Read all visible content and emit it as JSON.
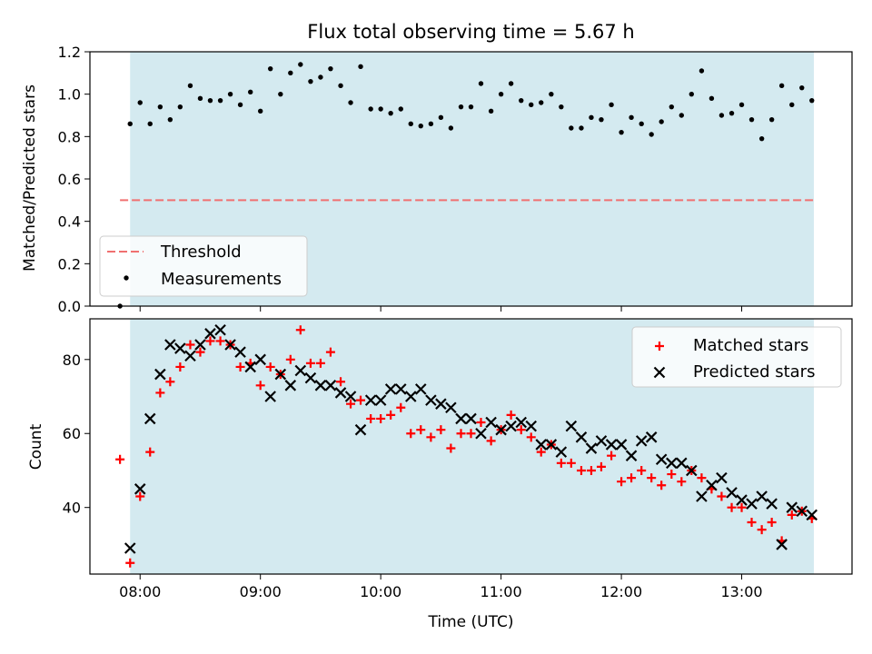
{
  "title": "Flux total observing time = 5.67 h",
  "chart_data": [
    {
      "type": "scatter",
      "name": "ratio-panel",
      "ylabel": "Matched/Predicted stars",
      "xlim": [
        7.583,
        13.917
      ],
      "ylim": [
        0.0,
        1.2
      ],
      "yticks": [
        0.0,
        0.2,
        0.4,
        0.6,
        0.8,
        1.0,
        1.2
      ],
      "ytick_labels": [
        "0.0",
        "0.2",
        "0.4",
        "0.6",
        "0.8",
        "1.0",
        "1.2"
      ],
      "shaded_span": [
        7.917,
        13.6
      ],
      "threshold": {
        "label": "Threshold",
        "value": 0.5,
        "x_range": [
          7.833,
          13.6
        ],
        "color": "#f07070"
      },
      "series": [
        {
          "name": "Measurements",
          "color": "#000000",
          "points": [
            [
              7.833,
              0.0
            ],
            [
              7.917,
              0.86
            ],
            [
              8.0,
              0.96
            ],
            [
              8.083,
              0.86
            ],
            [
              8.167,
              0.94
            ],
            [
              8.25,
              0.88
            ],
            [
              8.333,
              0.94
            ],
            [
              8.417,
              1.04
            ],
            [
              8.5,
              0.98
            ],
            [
              8.583,
              0.97
            ],
            [
              8.667,
              0.97
            ],
            [
              8.75,
              1.0
            ],
            [
              8.833,
              0.95
            ],
            [
              8.917,
              1.01
            ],
            [
              9.0,
              0.92
            ],
            [
              9.083,
              1.12
            ],
            [
              9.167,
              1.0
            ],
            [
              9.25,
              1.1
            ],
            [
              9.333,
              1.14
            ],
            [
              9.417,
              1.06
            ],
            [
              9.5,
              1.08
            ],
            [
              9.583,
              1.12
            ],
            [
              9.667,
              1.04
            ],
            [
              9.75,
              0.96
            ],
            [
              9.833,
              1.13
            ],
            [
              9.917,
              0.93
            ],
            [
              10.0,
              0.93
            ],
            [
              10.083,
              0.91
            ],
            [
              10.167,
              0.93
            ],
            [
              10.25,
              0.86
            ],
            [
              10.333,
              0.85
            ],
            [
              10.417,
              0.86
            ],
            [
              10.5,
              0.89
            ],
            [
              10.583,
              0.84
            ],
            [
              10.667,
              0.94
            ],
            [
              10.75,
              0.94
            ],
            [
              10.833,
              1.05
            ],
            [
              10.917,
              0.92
            ],
            [
              11.0,
              1.0
            ],
            [
              11.083,
              1.05
            ],
            [
              11.167,
              0.97
            ],
            [
              11.25,
              0.95
            ],
            [
              11.333,
              0.96
            ],
            [
              11.417,
              1.0
            ],
            [
              11.5,
              0.94
            ],
            [
              11.583,
              0.84
            ],
            [
              11.667,
              0.84
            ],
            [
              11.75,
              0.89
            ],
            [
              11.833,
              0.88
            ],
            [
              11.917,
              0.95
            ],
            [
              12.0,
              0.82
            ],
            [
              12.083,
              0.89
            ],
            [
              12.167,
              0.86
            ],
            [
              12.25,
              0.81
            ],
            [
              12.333,
              0.87
            ],
            [
              12.417,
              0.94
            ],
            [
              12.5,
              0.9
            ],
            [
              12.583,
              1.0
            ],
            [
              12.667,
              1.11
            ],
            [
              12.75,
              0.98
            ],
            [
              12.833,
              0.9
            ],
            [
              12.917,
              0.91
            ],
            [
              13.0,
              0.95
            ],
            [
              13.083,
              0.88
            ],
            [
              13.167,
              0.79
            ],
            [
              13.25,
              0.88
            ],
            [
              13.333,
              1.04
            ],
            [
              13.417,
              0.95
            ],
            [
              13.5,
              1.03
            ],
            [
              13.583,
              0.97
            ]
          ]
        }
      ],
      "legend": {
        "position": "lower-left",
        "entries": [
          "Threshold",
          "Measurements"
        ]
      }
    },
    {
      "type": "scatter",
      "name": "count-panel",
      "xlabel": "Time (UTC)",
      "ylabel": "Count",
      "xlim": [
        7.583,
        13.917
      ],
      "ylim": [
        22,
        91
      ],
      "yticks": [
        40,
        60,
        80
      ],
      "ytick_labels": [
        "40",
        "60",
        "80"
      ],
      "xticks": [
        8,
        9,
        10,
        11,
        12,
        13
      ],
      "xtick_labels": [
        "08:00",
        "09:00",
        "10:00",
        "11:00",
        "12:00",
        "13:00"
      ],
      "shaded_span": [
        7.917,
        13.6
      ],
      "series": [
        {
          "name": "Matched stars",
          "marker": "plus",
          "color": "#ff0000",
          "points": [
            [
              7.833,
              53
            ],
            [
              7.917,
              25
            ],
            [
              8.0,
              43
            ],
            [
              8.083,
              55
            ],
            [
              8.167,
              71
            ],
            [
              8.25,
              74
            ],
            [
              8.333,
              78
            ],
            [
              8.417,
              84
            ],
            [
              8.5,
              82
            ],
            [
              8.583,
              85
            ],
            [
              8.667,
              85
            ],
            [
              8.75,
              84
            ],
            [
              8.833,
              78
            ],
            [
              8.917,
              79
            ],
            [
              9.0,
              73
            ],
            [
              9.083,
              78
            ],
            [
              9.167,
              76
            ],
            [
              9.25,
              80
            ],
            [
              9.333,
              88
            ],
            [
              9.417,
              79
            ],
            [
              9.5,
              79
            ],
            [
              9.583,
              82
            ],
            [
              9.667,
              74
            ],
            [
              9.75,
              68
            ],
            [
              9.833,
              69
            ],
            [
              9.917,
              64
            ],
            [
              10.0,
              64
            ],
            [
              10.083,
              65
            ],
            [
              10.167,
              67
            ],
            [
              10.25,
              60
            ],
            [
              10.333,
              61
            ],
            [
              10.417,
              59
            ],
            [
              10.5,
              61
            ],
            [
              10.583,
              56
            ],
            [
              10.667,
              60
            ],
            [
              10.75,
              60
            ],
            [
              10.833,
              63
            ],
            [
              10.917,
              58
            ],
            [
              11.0,
              61
            ],
            [
              11.083,
              65
            ],
            [
              11.167,
              61
            ],
            [
              11.25,
              59
            ],
            [
              11.333,
              55
            ],
            [
              11.417,
              57
            ],
            [
              11.5,
              52
            ],
            [
              11.583,
              52
            ],
            [
              11.667,
              50
            ],
            [
              11.75,
              50
            ],
            [
              11.833,
              51
            ],
            [
              11.917,
              54
            ],
            [
              12.0,
              47
            ],
            [
              12.083,
              48
            ],
            [
              12.167,
              50
            ],
            [
              12.25,
              48
            ],
            [
              12.333,
              46
            ],
            [
              12.417,
              49
            ],
            [
              12.5,
              47
            ],
            [
              12.583,
              50
            ],
            [
              12.667,
              48
            ],
            [
              12.75,
              45
            ],
            [
              12.833,
              43
            ],
            [
              12.917,
              40
            ],
            [
              13.0,
              40
            ],
            [
              13.083,
              36
            ],
            [
              13.167,
              34
            ],
            [
              13.25,
              36
            ],
            [
              13.333,
              31
            ],
            [
              13.417,
              38
            ],
            [
              13.5,
              39
            ],
            [
              13.583,
              37
            ]
          ]
        },
        {
          "name": "Predicted stars",
          "marker": "x",
          "color": "#000000",
          "points": [
            [
              7.917,
              29
            ],
            [
              8.0,
              45
            ],
            [
              8.083,
              64
            ],
            [
              8.167,
              76
            ],
            [
              8.25,
              84
            ],
            [
              8.333,
              83
            ],
            [
              8.417,
              81
            ],
            [
              8.5,
              84
            ],
            [
              8.583,
              87
            ],
            [
              8.667,
              88
            ],
            [
              8.75,
              84
            ],
            [
              8.833,
              82
            ],
            [
              8.917,
              78
            ],
            [
              9.0,
              80
            ],
            [
              9.083,
              70
            ],
            [
              9.167,
              76
            ],
            [
              9.25,
              73
            ],
            [
              9.333,
              77
            ],
            [
              9.417,
              75
            ],
            [
              9.5,
              73
            ],
            [
              9.583,
              73
            ],
            [
              9.667,
              71
            ],
            [
              9.75,
              70
            ],
            [
              9.833,
              61
            ],
            [
              9.917,
              69
            ],
            [
              10.0,
              69
            ],
            [
              10.083,
              72
            ],
            [
              10.167,
              72
            ],
            [
              10.25,
              70
            ],
            [
              10.333,
              72
            ],
            [
              10.417,
              69
            ],
            [
              10.5,
              68
            ],
            [
              10.583,
              67
            ],
            [
              10.667,
              64
            ],
            [
              10.75,
              64
            ],
            [
              10.833,
              60
            ],
            [
              10.917,
              63
            ],
            [
              11.0,
              61
            ],
            [
              11.083,
              62
            ],
            [
              11.167,
              63
            ],
            [
              11.25,
              62
            ],
            [
              11.333,
              57
            ],
            [
              11.417,
              57
            ],
            [
              11.5,
              55
            ],
            [
              11.583,
              62
            ],
            [
              11.667,
              59
            ],
            [
              11.75,
              56
            ],
            [
              11.833,
              58
            ],
            [
              11.917,
              57
            ],
            [
              12.0,
              57
            ],
            [
              12.083,
              54
            ],
            [
              12.167,
              58
            ],
            [
              12.25,
              59
            ],
            [
              12.333,
              53
            ],
            [
              12.417,
              52
            ],
            [
              12.5,
              52
            ],
            [
              12.583,
              50
            ],
            [
              12.667,
              43
            ],
            [
              12.75,
              46
            ],
            [
              12.833,
              48
            ],
            [
              12.917,
              44
            ],
            [
              13.0,
              42
            ],
            [
              13.083,
              41
            ],
            [
              13.167,
              43
            ],
            [
              13.25,
              41
            ],
            [
              13.333,
              30
            ],
            [
              13.417,
              40
            ],
            [
              13.5,
              39
            ],
            [
              13.583,
              38
            ]
          ]
        }
      ],
      "legend": {
        "position": "top-right",
        "entries": [
          "Matched stars",
          "Predicted stars"
        ]
      }
    }
  ]
}
